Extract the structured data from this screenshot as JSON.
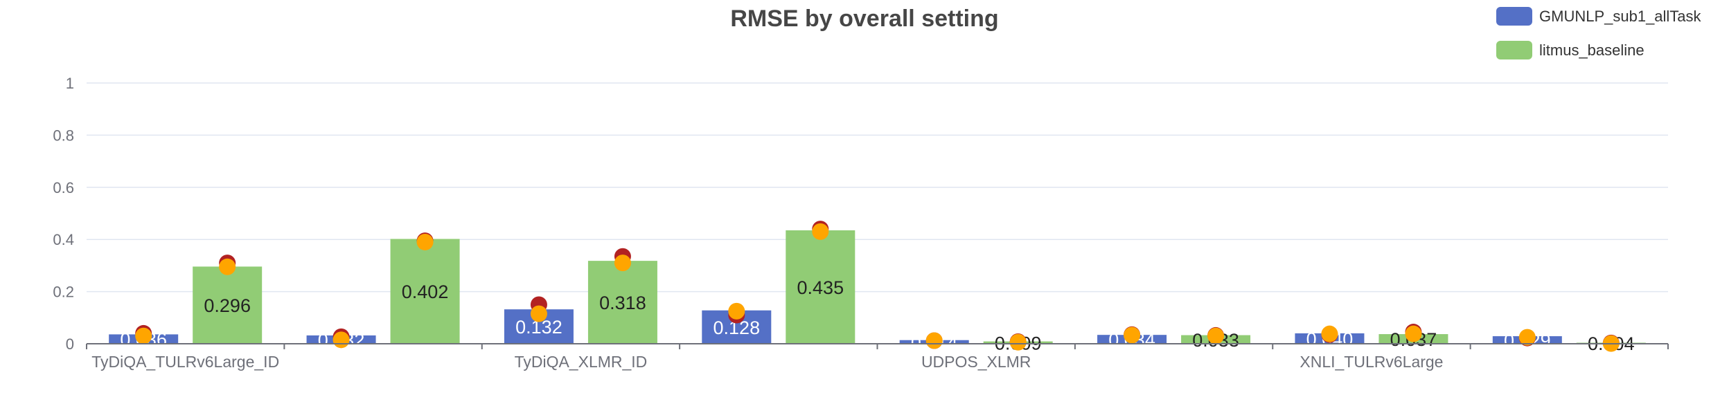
{
  "chart_data": {
    "type": "bar",
    "title": "RMSE by overall setting",
    "xlabel": "",
    "ylabel": "",
    "ylim": [
      0,
      1
    ],
    "yticks": [
      "0",
      "0.2",
      "0.4",
      "0.6",
      "0.8",
      "1"
    ],
    "categories": [
      "TyDiQA_TULRv6Large_ID",
      "",
      "TyDiQA_XLMR_ID",
      "",
      "UDPOS_XLMR",
      "",
      "XNLI_TULRv6Large",
      ""
    ],
    "series": [
      {
        "name": "GMUNLP_sub1_allTask",
        "color": "#5470c6",
        "values": [
          0.036,
          0.032,
          0.132,
          0.128,
          0.014,
          0.034,
          0.04,
          0.029
        ],
        "labels": [
          "0.036",
          "0.032",
          "0.132",
          "0.128",
          "0.014",
          "0.034",
          "0.040",
          "0.029"
        ],
        "markers_dark": [
          0.04,
          0.027,
          0.15,
          0.11,
          0.012,
          0.035,
          0.035,
          0.022
        ],
        "markers_light": [
          0.03,
          0.015,
          0.115,
          0.125,
          0.012,
          0.033,
          0.038,
          0.025
        ]
      },
      {
        "name": "litmus_baseline",
        "color": "#91cc75",
        "values": [
          0.296,
          0.402,
          0.318,
          0.435,
          0.009,
          0.033,
          0.037,
          0.004
        ],
        "labels": [
          "0.296",
          "0.402",
          "0.318",
          "0.435",
          "0.009",
          "0.033",
          "0.037",
          "0.004"
        ],
        "markers_dark": [
          0.31,
          0.395,
          0.335,
          0.44,
          0.008,
          0.032,
          0.045,
          0.003
        ],
        "markers_light": [
          0.295,
          0.39,
          0.31,
          0.43,
          0.006,
          0.03,
          0.038,
          0.001
        ]
      }
    ],
    "marker_colors": {
      "dark": "#b22222",
      "light": "#ffa500"
    },
    "grid": true,
    "legend_position": "top-right"
  }
}
